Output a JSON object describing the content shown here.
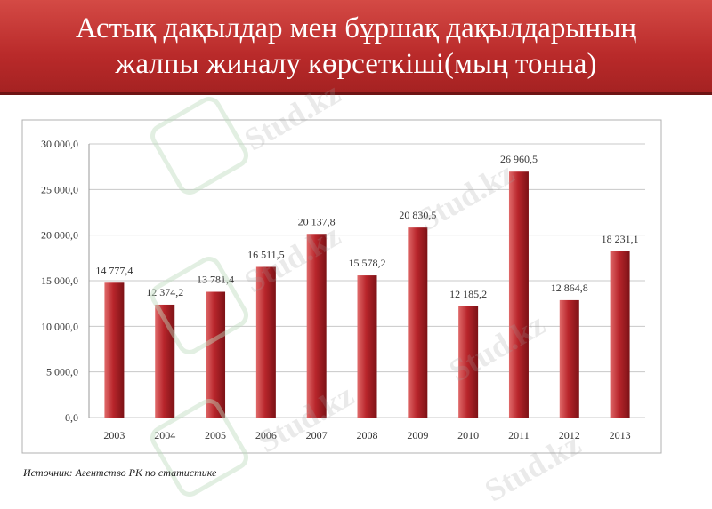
{
  "title_lines": [
    "Астық дақылдар мен бұршақ дақылдарының",
    "жалпы жиналу көрсеткіші(мың тонна)"
  ],
  "source_note": "Источник: Агентство РК по статистике",
  "watermark_text": "Stud.kz",
  "colors": {
    "title_bg": "#b92a2a",
    "bar": "#b8252b",
    "bar_light": "#e06a6a",
    "bar_dark": "#7c1216",
    "grid": "#c8c8c8",
    "text": "#333333"
  },
  "chart_data": {
    "type": "bar",
    "categories": [
      "2003",
      "2004",
      "2005",
      "2006",
      "2007",
      "2008",
      "2009",
      "2010",
      "2011",
      "2012",
      "2013"
    ],
    "values": [
      14777.4,
      12374.2,
      13781.4,
      16511.5,
      20137.8,
      15578.2,
      20830.5,
      12185.2,
      26960.5,
      12864.8,
      18231.1
    ],
    "value_labels": [
      "14 777,4",
      "12 374,2",
      "13 781,4",
      "16 511,5",
      "20 137,8",
      "15 578,2",
      "20 830,5",
      "12 185,2",
      "26 960,5",
      "12 864,8",
      "18 231,1"
    ],
    "yticks": [
      0,
      5000,
      10000,
      15000,
      20000,
      25000,
      30000
    ],
    "ytick_labels": [
      "0,0",
      "5 000,0",
      "10 000,0",
      "15 000,0",
      "20 000,0",
      "25 000,0",
      "30 000,0"
    ],
    "ylim": [
      0,
      30000
    ],
    "grid": true,
    "legend": "none"
  }
}
